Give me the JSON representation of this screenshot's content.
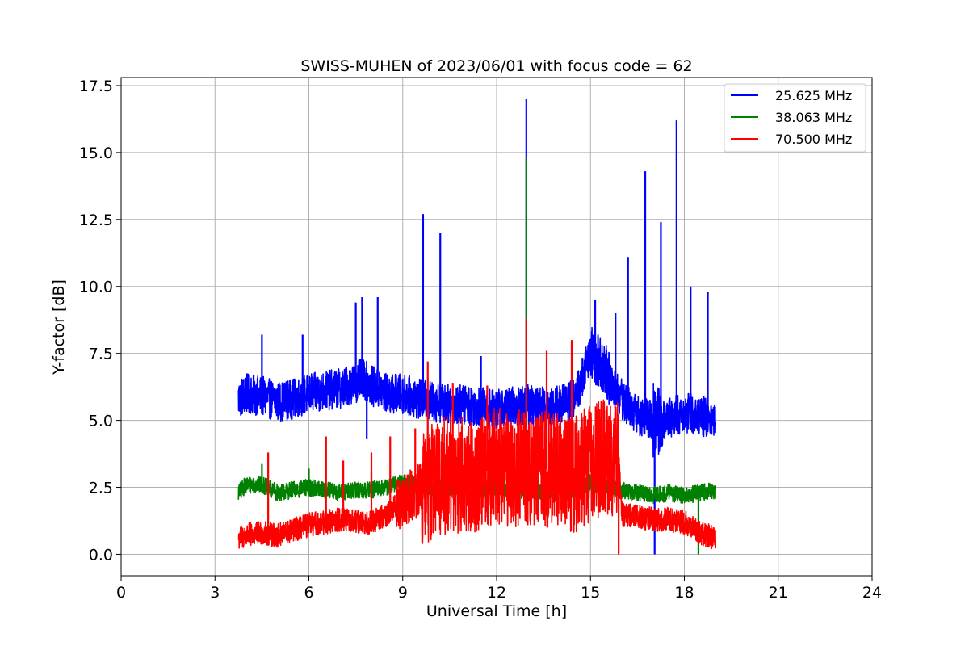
{
  "chart_data": {
    "type": "line",
    "title": "SWISS-MUHEN of 2023/06/01 with focus code = 62",
    "xlabel": "Universal Time [h]",
    "ylabel": "Y-factor [dB]",
    "xlim": [
      0,
      24
    ],
    "ylim": [
      -0.8,
      17.8
    ],
    "xticks": [
      "0",
      "3",
      "6",
      "9",
      "12",
      "15",
      "18",
      "21",
      "24"
    ],
    "yticks": [
      "0.0",
      "2.5",
      "5.0",
      "7.5",
      "10.0",
      "12.5",
      "15.0",
      "17.5"
    ],
    "grid": true,
    "legend_position": "top-right",
    "series": [
      {
        "name": "25.625 MHz",
        "color": "#0000ff",
        "x": [
          3.75,
          4.0,
          4.5,
          5.0,
          5.5,
          6.0,
          6.5,
          7.0,
          7.5,
          7.7,
          8.0,
          8.5,
          9.0,
          9.5,
          10.0,
          10.5,
          11.0,
          11.5,
          12.0,
          12.5,
          13.0,
          13.5,
          14.0,
          14.5,
          15.0,
          15.3,
          15.6,
          16.0,
          16.5,
          17.0,
          17.5,
          18.0,
          18.5,
          19.0
        ],
        "values": [
          5.8,
          6.0,
          5.9,
          5.7,
          5.8,
          6.0,
          6.1,
          6.2,
          6.4,
          6.6,
          6.3,
          6.0,
          6.0,
          5.8,
          5.7,
          5.6,
          5.6,
          5.5,
          5.4,
          5.5,
          5.6,
          5.5,
          5.6,
          5.8,
          7.5,
          7.2,
          6.5,
          5.8,
          5.2,
          5.0,
          5.1,
          5.3,
          5.2,
          5.0
        ],
        "spikes": [
          [
            4.5,
            8.2
          ],
          [
            5.8,
            8.2
          ],
          [
            7.5,
            9.4
          ],
          [
            7.7,
            9.6
          ],
          [
            8.2,
            9.6
          ],
          [
            9.65,
            12.7
          ],
          [
            10.2,
            12.0
          ],
          [
            11.5,
            7.4
          ],
          [
            12.95,
            17.0
          ],
          [
            15.15,
            9.5
          ],
          [
            15.8,
            9.0
          ],
          [
            16.2,
            11.1
          ],
          [
            16.75,
            14.3
          ],
          [
            17.25,
            12.4
          ],
          [
            17.75,
            16.2
          ],
          [
            18.2,
            10.0
          ],
          [
            18.75,
            9.8
          ]
        ],
        "dips": [
          [
            7.85,
            4.3
          ],
          [
            17.05,
            0.0
          ]
        ]
      },
      {
        "name": "38.063 MHz",
        "color": "#008000",
        "x": [
          3.75,
          4.0,
          4.5,
          5.0,
          5.5,
          6.0,
          6.5,
          7.0,
          7.5,
          8.0,
          8.5,
          9.0,
          9.5,
          10.0,
          10.5,
          11.0,
          11.5,
          12.0,
          12.5,
          13.0,
          13.5,
          14.0,
          14.5,
          15.0,
          15.5,
          16.0,
          16.5,
          17.0,
          17.5,
          18.0,
          18.5,
          19.0
        ],
        "values": [
          2.3,
          2.6,
          2.6,
          2.3,
          2.4,
          2.5,
          2.4,
          2.3,
          2.4,
          2.4,
          2.5,
          2.7,
          2.6,
          2.5,
          2.5,
          2.4,
          2.4,
          2.5,
          2.4,
          2.4,
          2.3,
          2.3,
          2.4,
          2.7,
          2.5,
          2.4,
          2.3,
          2.2,
          2.3,
          2.2,
          2.3,
          2.4
        ],
        "spikes": [
          [
            4.5,
            3.4
          ],
          [
            6.0,
            3.2
          ],
          [
            8.0,
            3.1
          ],
          [
            12.95,
            14.8
          ]
        ],
        "dips": [
          [
            18.45,
            0.0
          ]
        ]
      },
      {
        "name": "70.500 MHz",
        "color": "#ff0000",
        "x": [
          3.75,
          4.0,
          4.5,
          5.0,
          5.5,
          6.0,
          6.5,
          7.0,
          7.5,
          8.0,
          8.5,
          9.0,
          9.5,
          10.0,
          10.5,
          11.0,
          11.5,
          12.0,
          12.5,
          13.0,
          13.5,
          14.0,
          14.5,
          15.0,
          15.5,
          15.9,
          16.0,
          16.5,
          17.0,
          17.5,
          18.0,
          18.5,
          19.0
        ],
        "values": [
          0.6,
          0.7,
          0.8,
          0.7,
          0.9,
          1.1,
          1.2,
          1.3,
          1.2,
          1.2,
          1.5,
          2.0,
          2.4,
          2.8,
          3.0,
          2.9,
          3.0,
          3.3,
          3.2,
          3.3,
          3.2,
          3.1,
          3.0,
          3.4,
          3.6,
          3.5,
          1.5,
          1.4,
          1.3,
          1.3,
          1.2,
          0.8,
          0.6
        ],
        "spikes": [
          [
            4.7,
            3.8
          ],
          [
            6.55,
            4.4
          ],
          [
            7.1,
            3.5
          ],
          [
            8.0,
            3.8
          ],
          [
            8.6,
            4.4
          ],
          [
            9.4,
            4.7
          ],
          [
            9.8,
            7.2
          ],
          [
            10.6,
            6.4
          ],
          [
            11.7,
            6.3
          ],
          [
            12.95,
            8.8
          ],
          [
            13.6,
            7.6
          ],
          [
            14.4,
            8.0
          ],
          [
            15.8,
            5.5
          ]
        ],
        "dips": [
          [
            15.9,
            0.0
          ]
        ]
      }
    ]
  }
}
